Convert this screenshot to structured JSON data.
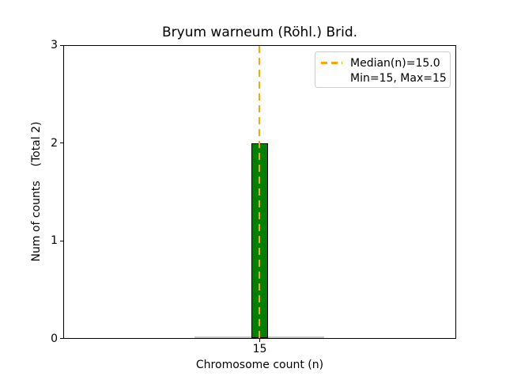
{
  "chart_data": {
    "type": "bar",
    "title": "Bryum warneum (Röhl.) Brid.",
    "xlabel": "Chromosome count (n)",
    "ylabel": "Num of counts    (Total 2)",
    "total_count": 2,
    "categories": [
      "15"
    ],
    "values": [
      2
    ],
    "x": [
      15
    ],
    "ylim": [
      0,
      3
    ],
    "yticks": [
      "0",
      "1",
      "2",
      "3"
    ],
    "xticks": [
      "15"
    ],
    "median": 15.0,
    "min": 15,
    "max": 15,
    "legend": {
      "position": "upper right",
      "line1": "Median(n)=15.0",
      "line2": "Min=15, Max=15"
    },
    "grid": false,
    "colors": {
      "bar_fill": "#008000",
      "bar_edge": "#000000",
      "median_line": "#ffa500",
      "legend_border": "#cccccc",
      "zero_strip": "#c8c8c8",
      "text": "#000000",
      "background": "#ffffff"
    }
  }
}
